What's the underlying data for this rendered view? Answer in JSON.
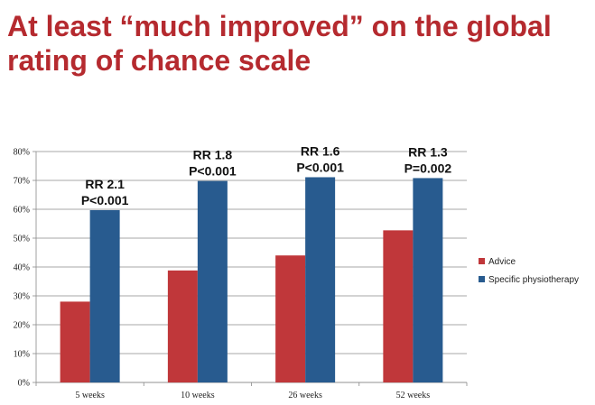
{
  "title_lines": [
    "At least “much improved” on the global",
    "rating of chance scale"
  ],
  "chart_data": {
    "type": "bar",
    "categories": [
      "5 weeks",
      "10 weeks",
      "26 weeks",
      "52 weeks"
    ],
    "series": [
      {
        "name": "Advice",
        "color": "#c0373a",
        "values": [
          28,
          38.8,
          44,
          52.7
        ]
      },
      {
        "name": "Specific physiotherapy",
        "color": "#285b8f",
        "values": [
          59.7,
          69.8,
          71.1,
          70.8
        ]
      }
    ],
    "ylim": [
      0,
      80
    ],
    "yticks": [
      "0%",
      "10%",
      "20%",
      "30%",
      "40%",
      "50%",
      "60%",
      "70%",
      "80%"
    ],
    "grid": true,
    "legend_position": "right",
    "annotations": [
      {
        "category": "5 weeks",
        "lines": [
          "RR 2.1",
          "P<0.001"
        ]
      },
      {
        "category": "10 weeks",
        "lines": [
          "RR 1.8",
          "P<0.001"
        ]
      },
      {
        "category": "26 weeks",
        "lines": [
          "RR 1.6",
          "P<0.001"
        ]
      },
      {
        "category": "52 weeks",
        "lines": [
          "RR 1.3",
          "P=0.002"
        ]
      }
    ]
  }
}
